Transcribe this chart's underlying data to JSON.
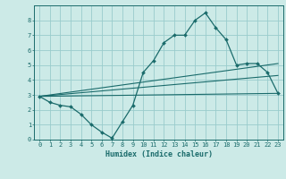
{
  "xlabel": "Humidex (Indice chaleur)",
  "bg_color": "#cceae7",
  "grid_color": "#99cccc",
  "line_color": "#1a6b6b",
  "xlim": [
    -0.5,
    23.5
  ],
  "ylim": [
    0,
    9
  ],
  "xtick_vals": [
    0,
    1,
    2,
    3,
    4,
    5,
    6,
    7,
    8,
    9,
    10,
    11,
    12,
    13,
    14,
    15,
    16,
    17,
    18,
    19,
    20,
    21,
    22,
    23
  ],
  "ytick_vals": [
    0,
    1,
    2,
    3,
    4,
    5,
    6,
    7,
    8
  ],
  "curve1_x": [
    0,
    1,
    2,
    3,
    4,
    5,
    6,
    7,
    8,
    9,
    10,
    11,
    12,
    13,
    14,
    15,
    16,
    17,
    18,
    19,
    20,
    21,
    22,
    23
  ],
  "curve1_y": [
    2.9,
    2.5,
    2.3,
    2.2,
    1.7,
    1.0,
    0.5,
    0.1,
    1.2,
    2.3,
    4.5,
    5.3,
    6.5,
    7.0,
    7.0,
    8.0,
    8.5,
    7.5,
    6.7,
    5.0,
    5.1,
    5.1,
    4.5,
    3.1
  ],
  "line1_x": [
    0,
    23
  ],
  "line1_y": [
    2.9,
    5.1
  ],
  "line2_x": [
    0,
    23
  ],
  "line2_y": [
    2.9,
    4.3
  ],
  "line3_x": [
    0,
    23
  ],
  "line3_y": [
    2.9,
    3.1
  ],
  "marker_style": "D",
  "marker_size": 2.0,
  "line_width": 0.9,
  "xlabel_fontsize": 6.0,
  "tick_fontsize": 5.0
}
